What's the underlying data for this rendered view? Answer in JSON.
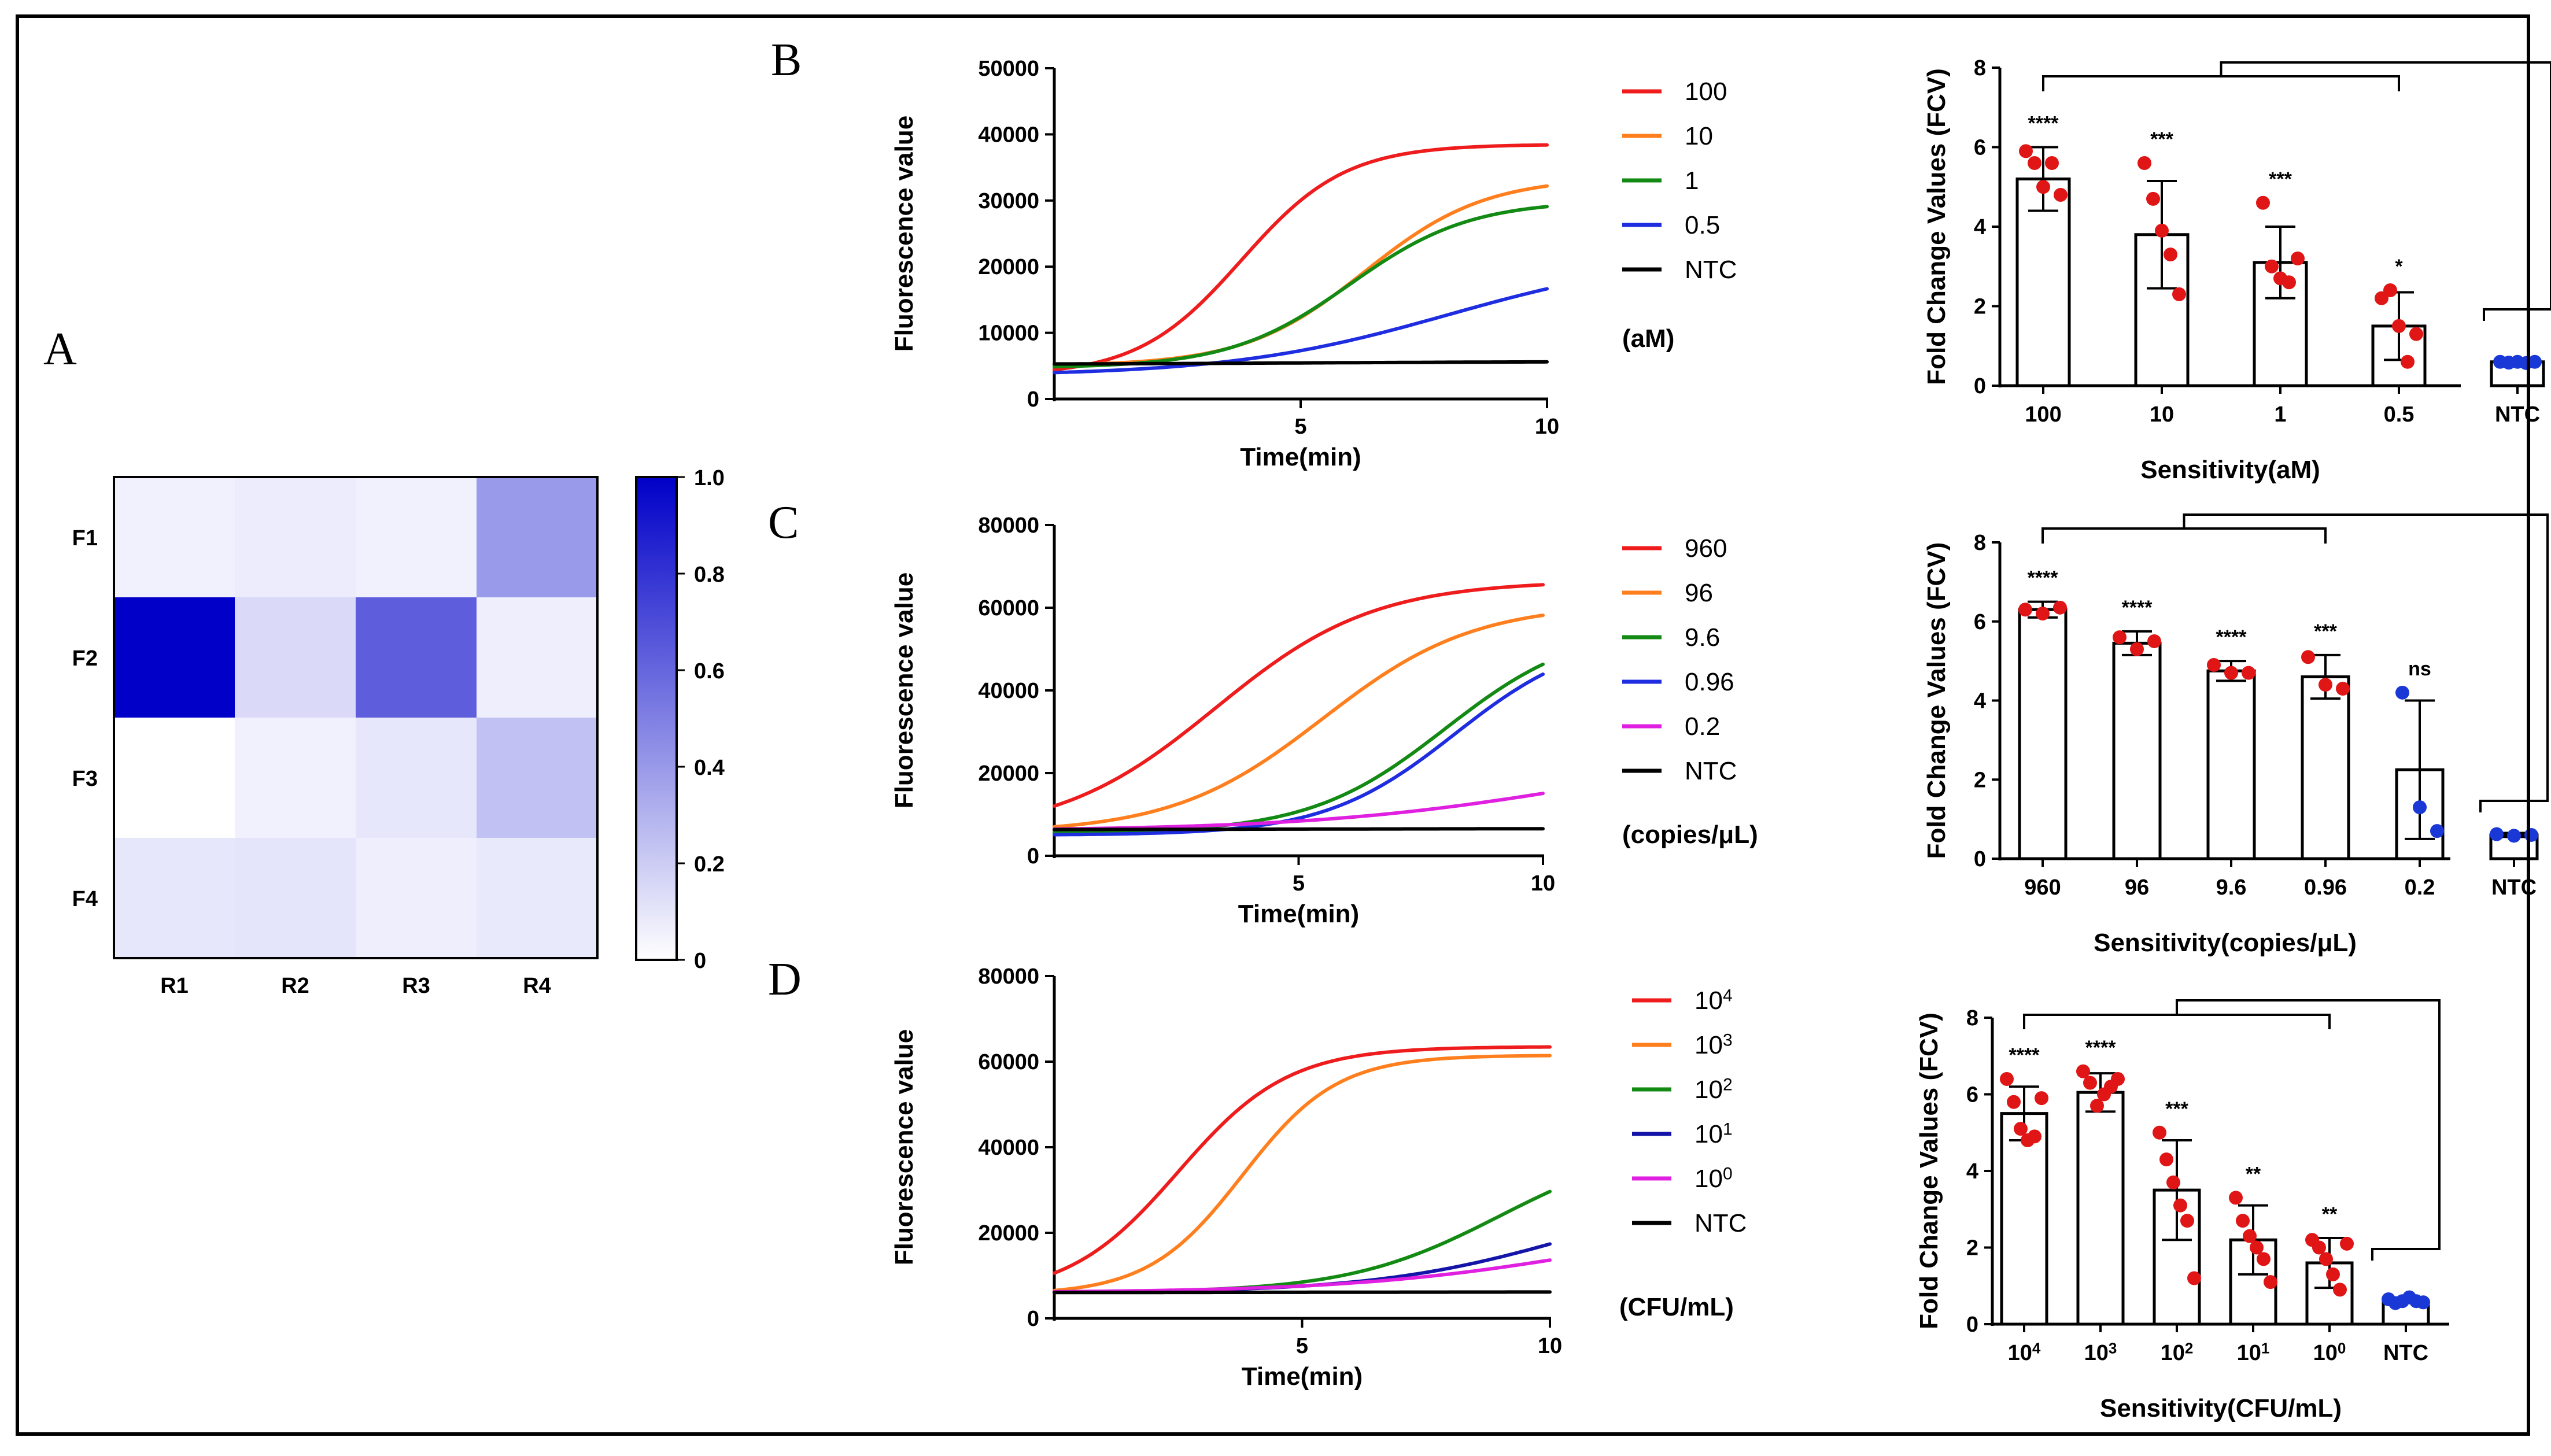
{
  "panels": {
    "A": "A",
    "B": "B",
    "C": "C",
    "D": "D"
  },
  "chart_data": [
    {
      "id": "A",
      "type": "heatmap",
      "rows": [
        "F1",
        "F2",
        "F3",
        "F4"
      ],
      "columns": [
        "R1",
        "R2",
        "R3",
        "R4"
      ],
      "values": [
        [
          0.03,
          0.05,
          0.03,
          0.38
        ],
        [
          1.0,
          0.12,
          0.62,
          0.04
        ],
        [
          0.0,
          0.03,
          0.07,
          0.22
        ],
        [
          0.07,
          0.08,
          0.04,
          0.06
        ]
      ],
      "colorbar": {
        "min": 0,
        "max": 1.0,
        "ticks": [
          "1.0",
          "0.8",
          "0.6",
          "0.4",
          "0.2",
          "0"
        ]
      },
      "color_low": "#ffffff",
      "color_high": "#0000c8"
    },
    {
      "id": "B-curve",
      "type": "line",
      "xlabel": "Time(min)",
      "ylabel": "Fluorescence value",
      "xlim": [
        0,
        10
      ],
      "ylim": [
        0,
        50000
      ],
      "xticks": [
        "5",
        "10"
      ],
      "yticks": [
        "0",
        "10000",
        "20000",
        "30000",
        "40000",
        "50000"
      ],
      "legend_unit": "(aM)",
      "series": [
        {
          "name": "100",
          "color": "#ee1c1c",
          "base": 3500,
          "top": 38500,
          "mid": 3.8,
          "k": 0.95
        },
        {
          "name": "10",
          "color": "#ff7f1e",
          "base": 5000,
          "top": 33500,
          "mid": 6.3,
          "k": 0.82
        },
        {
          "name": "1",
          "color": "#138a13",
          "base": 4700,
          "top": 30000,
          "mid": 6.0,
          "k": 0.82
        },
        {
          "name": "0.5",
          "color": "#1f2de0",
          "base": 3500,
          "top": 22000,
          "mid": 8.0,
          "k": 0.45
        },
        {
          "name": "NTC",
          "color": "#000000",
          "base": 5200,
          "top": 5700,
          "mid": 5,
          "k": 0.3
        }
      ]
    },
    {
      "id": "B-bar",
      "type": "bar",
      "categories": [
        "100",
        "10",
        "1",
        "0.5",
        "NTC"
      ],
      "values": [
        5.2,
        3.8,
        3.1,
        1.5,
        0.6
      ],
      "errors": [
        0.8,
        1.35,
        0.9,
        0.85,
        0.05
      ],
      "points": [
        [
          5.9,
          5.6,
          5.0,
          5.6,
          4.8
        ],
        [
          5.6,
          4.7,
          3.9,
          3.3,
          2.3
        ],
        [
          4.6,
          3.0,
          2.7,
          2.6,
          3.2
        ],
        [
          2.2,
          2.4,
          1.5,
          0.6,
          1.3
        ],
        [
          0.6,
          0.58,
          0.6,
          0.57,
          0.6
        ]
      ],
      "point_colors": [
        "#e01515",
        "#e01515",
        "#e01515",
        "#e01515",
        "#1a38d6"
      ],
      "significance": [
        "****",
        "***",
        "***",
        "*",
        ""
      ],
      "xlabel": "Sensitivity(aM)",
      "ylabel": "Fold Change Values (FCV)",
      "ylim": [
        0,
        8
      ],
      "yticks": [
        "0",
        "2",
        "4",
        "6",
        "8"
      ]
    },
    {
      "id": "C-curve",
      "type": "line",
      "xlabel": "Time(min)",
      "ylabel": "Fluorescence value",
      "xlim": [
        0,
        10
      ],
      "ylim": [
        0,
        80000
      ],
      "xticks": [
        "5",
        "10"
      ],
      "yticks": [
        "0",
        "20000",
        "40000",
        "60000",
        "80000"
      ],
      "legend_unit": "(copies/μL)",
      "series": [
        {
          "name": "960",
          "color": "#ee1c1c",
          "base": 5000,
          "top": 66500,
          "mid": 3.3,
          "k": 0.62
        },
        {
          "name": "96",
          "color": "#ff7f1e",
          "base": 5500,
          "top": 61000,
          "mid": 5.5,
          "k": 0.65
        },
        {
          "name": "9.6",
          "color": "#138a13",
          "base": 5500,
          "top": 56000,
          "mid": 8.0,
          "k": 0.72
        },
        {
          "name": "0.96",
          "color": "#1f2de0",
          "base": 5000,
          "top": 54000,
          "mid": 8.2,
          "k": 0.75
        },
        {
          "name": "0.2",
          "color": "#e020e0",
          "base": 6000,
          "top": 28000,
          "mid": 11.0,
          "k": 0.35
        },
        {
          "name": "NTC",
          "color": "#000000",
          "base": 6300,
          "top": 6600,
          "mid": 5,
          "k": 0.3
        }
      ]
    },
    {
      "id": "C-bar",
      "type": "bar",
      "categories": [
        "960",
        "96",
        "9.6",
        "0.96",
        "0.2",
        "NTC"
      ],
      "values": [
        6.3,
        5.45,
        4.75,
        4.6,
        2.25,
        0.6
      ],
      "errors": [
        0.2,
        0.3,
        0.25,
        0.55,
        1.75,
        0.05
      ],
      "points": [
        [
          6.3,
          6.2,
          6.35
        ],
        [
          5.6,
          5.3,
          5.5
        ],
        [
          4.9,
          4.7,
          4.7
        ],
        [
          5.1,
          4.4,
          4.3
        ],
        [
          4.2,
          1.3,
          0.7
        ],
        [
          0.62,
          0.58,
          0.6
        ]
      ],
      "point_colors": [
        "#e01515",
        "#e01515",
        "#e01515",
        "#e01515",
        "#1a38d6",
        "#1a38d6"
      ],
      "significance": [
        "****",
        "****",
        "****",
        "***",
        "ns",
        ""
      ],
      "xlabel": "Sensitivity(copies/μL)",
      "ylabel": "Fold Change Values (FCV)",
      "ylim": [
        0,
        8
      ],
      "yticks": [
        "0",
        "2",
        "4",
        "6",
        "8"
      ]
    },
    {
      "id": "D-curve",
      "type": "line",
      "xlabel": "Time(min)",
      "ylabel": "Fluorescence value",
      "xlim": [
        0,
        10
      ],
      "ylim": [
        0,
        80000
      ],
      "xticks": [
        "5",
        "10"
      ],
      "yticks": [
        "0",
        "20000",
        "40000",
        "60000",
        "80000"
      ],
      "legend_unit": "(CFU/mL)",
      "series": [
        {
          "name": "10",
          "sup": "4",
          "color": "#ee1c1c",
          "base": 5000,
          "top": 63500,
          "mid": 2.5,
          "k": 0.9
        },
        {
          "name": "10",
          "sup": "3",
          "color": "#ff7f1e",
          "base": 5500,
          "top": 61500,
          "mid": 3.8,
          "k": 1.05
        },
        {
          "name": "10",
          "sup": "2",
          "color": "#138a13",
          "base": 6000,
          "top": 42000,
          "mid": 9.0,
          "k": 0.65
        },
        {
          "name": "10",
          "sup": "1",
          "color": "#1414a8",
          "base": 6000,
          "top": 32000,
          "mid": 10.5,
          "k": 0.5
        },
        {
          "name": "10",
          "sup": "0",
          "color": "#e020e0",
          "base": 6000,
          "top": 25000,
          "mid": 11.0,
          "k": 0.4
        },
        {
          "name": "NTC",
          "color": "#000000",
          "base": 6000,
          "top": 6200,
          "mid": 5,
          "k": 0.3
        }
      ]
    },
    {
      "id": "D-bar",
      "type": "bar",
      "categories": [
        {
          "base": "10",
          "sup": "4"
        },
        {
          "base": "10",
          "sup": "3"
        },
        {
          "base": "10",
          "sup": "2"
        },
        {
          "base": "10",
          "sup": "1"
        },
        {
          "base": "10",
          "sup": "0"
        },
        {
          "base": "NTC",
          "sup": ""
        }
      ],
      "values": [
        5.5,
        6.05,
        3.5,
        2.2,
        1.6,
        0.6
      ],
      "errors": [
        0.7,
        0.5,
        1.3,
        0.9,
        0.65,
        0.05
      ],
      "points": [
        [
          6.4,
          5.8,
          5.1,
          4.8,
          4.9,
          5.9
        ],
        [
          6.6,
          6.3,
          5.7,
          6.0,
          6.2,
          6.4
        ],
        [
          5.0,
          4.3,
          3.7,
          3.1,
          2.7,
          1.2
        ],
        [
          3.3,
          2.7,
          2.3,
          2.0,
          1.7,
          1.1
        ],
        [
          2.2,
          2.0,
          1.7,
          1.3,
          0.9,
          2.1
        ],
        [
          0.65,
          0.55,
          0.6,
          0.7,
          0.6,
          0.57
        ]
      ],
      "point_colors": [
        "#e01515",
        "#e01515",
        "#e01515",
        "#e01515",
        "#e01515",
        "#1a38d6"
      ],
      "significance": [
        "****",
        "****",
        "***",
        "**",
        "**",
        ""
      ],
      "xlabel": "Sensitivity(CFU/mL)",
      "ylabel": "Fold Change Values (FCV)",
      "ylim": [
        0,
        8
      ],
      "yticks": [
        "0",
        "2",
        "4",
        "6",
        "8"
      ]
    }
  ]
}
